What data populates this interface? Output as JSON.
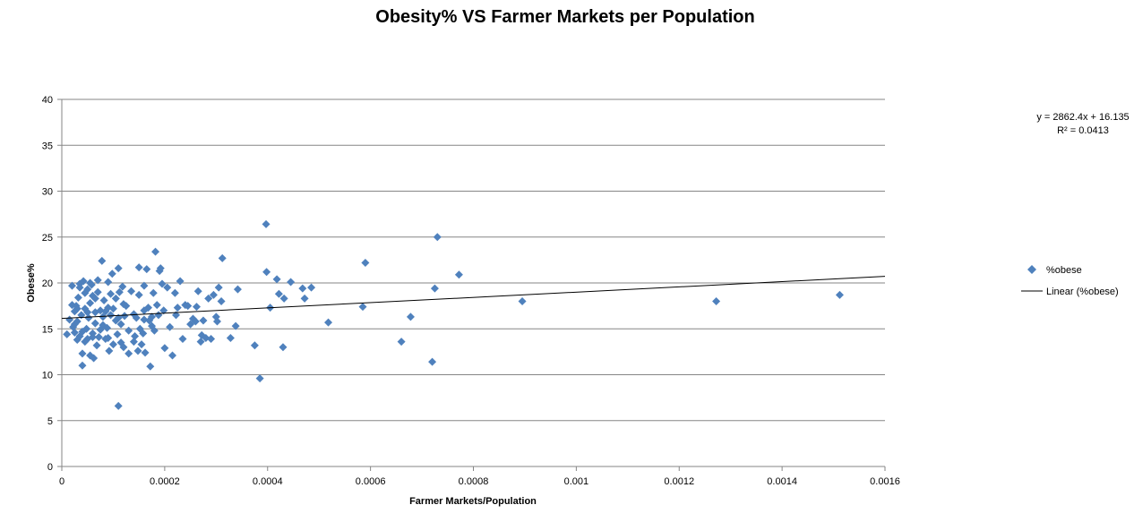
{
  "chart_data": {
    "type": "scatter",
    "title": "Obesity% VS Farmer Markets per Population",
    "xlabel": "Farmer Markets/Population",
    "ylabel": "Obese%",
    "xlim": [
      0,
      0.0016
    ],
    "ylim": [
      0,
      40
    ],
    "x_ticks": [
      "0",
      "0.0002",
      "0.0004",
      "0.0006",
      "0.0008",
      "0.001",
      "0.0012",
      "0.0014",
      "0.0016"
    ],
    "y_ticks": [
      "0",
      "5",
      "10",
      "15",
      "20",
      "25",
      "30",
      "35",
      "40"
    ],
    "grid": "horizontal",
    "legend_position": "right",
    "marker_color": "#4f81bd",
    "trendline_color": "#000000",
    "series": [
      {
        "name": "%obese",
        "points": [
          [
            1e-05,
            14.4
          ],
          [
            1.5e-05,
            16.0
          ],
          [
            2e-05,
            17.6
          ],
          [
            2e-05,
            19.7
          ],
          [
            2.2e-05,
            15.2
          ],
          [
            2.5e-05,
            14.6
          ],
          [
            2.5e-05,
            16.9
          ],
          [
            2.8e-05,
            17.5
          ],
          [
            3e-05,
            13.8
          ],
          [
            3e-05,
            15.8
          ],
          [
            3.2e-05,
            18.4
          ],
          [
            3.5e-05,
            19.9
          ],
          [
            3.5e-05,
            14.2
          ],
          [
            3.8e-05,
            16.5
          ],
          [
            4e-05,
            11.0
          ],
          [
            4e-05,
            12.3
          ],
          [
            4.2e-05,
            20.2
          ],
          [
            4.5e-05,
            17.2
          ],
          [
            4.5e-05,
            18.9
          ],
          [
            4.8e-05,
            15.0
          ],
          [
            5e-05,
            13.9
          ],
          [
            5e-05,
            19.3
          ],
          [
            5.2e-05,
            16.2
          ],
          [
            5.5e-05,
            12.1
          ],
          [
            5.5e-05,
            17.8
          ],
          [
            5.8e-05,
            19.8
          ],
          [
            6e-05,
            14.5
          ],
          [
            6e-05,
            18.6
          ],
          [
            6.2e-05,
            11.8
          ],
          [
            6.5e-05,
            15.6
          ],
          [
            6.5e-05,
            16.8
          ],
          [
            6.8e-05,
            13.2
          ],
          [
            7e-05,
            19.0
          ],
          [
            7e-05,
            20.3
          ],
          [
            7.2e-05,
            14.1
          ],
          [
            7.5e-05,
            17.0
          ],
          [
            7.8e-05,
            22.4
          ],
          [
            8e-05,
            15.4
          ],
          [
            8e-05,
            16.3
          ],
          [
            8.2e-05,
            18.1
          ],
          [
            8.5e-05,
            13.9
          ],
          [
            8.8e-05,
            15.1
          ],
          [
            9e-05,
            17.3
          ],
          [
            9e-05,
            20.1
          ],
          [
            9.2e-05,
            12.6
          ],
          [
            9.5e-05,
            16.5
          ],
          [
            9.8e-05,
            21.0
          ],
          [
            0.0001,
            17.2
          ],
          [
            0.0001,
            13.3
          ],
          [
            0.000105,
            18.3
          ],
          [
            0.000105,
            15.9
          ],
          [
            0.000108,
            14.4
          ],
          [
            0.00011,
            21.6
          ],
          [
            0.00011,
            6.6
          ],
          [
            0.000112,
            19.0
          ],
          [
            0.000115,
            13.5
          ],
          [
            0.000118,
            19.6
          ],
          [
            0.00012,
            13.0
          ],
          [
            0.000122,
            16.4
          ],
          [
            0.000125,
            17.5
          ],
          [
            0.00013,
            12.3
          ],
          [
            0.000135,
            19.1
          ],
          [
            0.00014,
            13.6
          ],
          [
            0.000142,
            14.2
          ],
          [
            0.000145,
            16.2
          ],
          [
            0.000148,
            12.6
          ],
          [
            0.00015,
            21.7
          ],
          [
            0.00015,
            18.7
          ],
          [
            0.000152,
            15.0
          ],
          [
            0.000155,
            13.3
          ],
          [
            0.000158,
            14.5
          ],
          [
            0.00016,
            16.0
          ],
          [
            0.00016,
            19.7
          ],
          [
            0.000162,
            12.4
          ],
          [
            0.000165,
            21.5
          ],
          [
            0.000168,
            17.3
          ],
          [
            0.00017,
            15.9
          ],
          [
            0.000172,
            10.9
          ],
          [
            0.000175,
            16.3
          ],
          [
            0.000178,
            18.9
          ],
          [
            0.00018,
            14.8
          ],
          [
            0.000182,
            23.4
          ],
          [
            0.000185,
            17.6
          ],
          [
            0.000188,
            16.5
          ],
          [
            0.00019,
            21.3
          ],
          [
            0.000192,
            21.6
          ],
          [
            0.000195,
            19.9
          ],
          [
            0.000198,
            17.0
          ],
          [
            0.0002,
            12.9
          ],
          [
            0.000205,
            19.5
          ],
          [
            0.00021,
            15.2
          ],
          [
            0.000215,
            12.1
          ],
          [
            0.00022,
            18.9
          ],
          [
            0.000222,
            16.5
          ],
          [
            0.000225,
            17.3
          ],
          [
            0.00023,
            20.2
          ],
          [
            0.000235,
            13.9
          ],
          [
            0.00024,
            17.6
          ],
          [
            0.000245,
            17.5
          ],
          [
            0.00025,
            15.5
          ],
          [
            0.000255,
            16.1
          ],
          [
            0.00026,
            15.8
          ],
          [
            0.000262,
            17.4
          ],
          [
            0.000265,
            19.1
          ],
          [
            0.00027,
            13.6
          ],
          [
            0.000272,
            14.3
          ],
          [
            0.000275,
            15.9
          ],
          [
            0.00028,
            14.0
          ],
          [
            0.000285,
            18.3
          ],
          [
            0.00029,
            13.9
          ],
          [
            0.000295,
            18.7
          ],
          [
            0.0003,
            16.3
          ],
          [
            0.000302,
            15.8
          ],
          [
            0.000305,
            19.5
          ],
          [
            0.00031,
            18.0
          ],
          [
            0.000312,
            22.7
          ],
          [
            0.000328,
            14.0
          ],
          [
            0.000338,
            15.3
          ],
          [
            0.000342,
            19.3
          ],
          [
            0.000375,
            13.2
          ],
          [
            0.000385,
            9.6
          ],
          [
            0.000397,
            26.4
          ],
          [
            0.000398,
            21.2
          ],
          [
            0.000405,
            17.3
          ],
          [
            0.000418,
            20.4
          ],
          [
            0.000422,
            18.8
          ],
          [
            0.00043,
            13.0
          ],
          [
            0.000432,
            18.3
          ],
          [
            0.000445,
            20.1
          ],
          [
            0.000468,
            19.4
          ],
          [
            0.000472,
            18.3
          ],
          [
            0.000485,
            19.5
          ],
          [
            0.000518,
            15.7
          ],
          [
            0.000585,
            17.4
          ],
          [
            0.00059,
            22.2
          ],
          [
            0.00066,
            13.6
          ],
          [
            0.000678,
            16.3
          ],
          [
            0.00072,
            11.4
          ],
          [
            0.000725,
            19.4
          ],
          [
            0.00073,
            25.0
          ],
          [
            0.000772,
            20.9
          ],
          [
            0.000895,
            18.0
          ],
          [
            0.001272,
            18.0
          ],
          [
            0.001512,
            18.7
          ],
          [
            5.5e-05,
            20.0
          ],
          [
            3.5e-05,
            19.5
          ],
          [
            0.00011,
            16.2
          ],
          [
            0.00013,
            14.8
          ],
          [
            0.00014,
            16.6
          ],
          [
            2.5e-05,
            15.5
          ],
          [
            5e-05,
            16.8
          ],
          [
            7.5e-05,
            14.9
          ],
          [
            9e-05,
            14.0
          ],
          [
            4.5e-05,
            13.6
          ],
          [
            0.00012,
            17.7
          ],
          [
            0.00016,
            17.0
          ],
          [
            8.5e-05,
            16.9
          ],
          [
            3e-05,
            17.2
          ],
          [
            6.5e-05,
            18.3
          ],
          [
            0.000115,
            15.5
          ],
          [
            0.000175,
            15.3
          ],
          [
            6e-05,
            14.1
          ],
          [
            9.5e-05,
            18.8
          ],
          [
            4e-05,
            14.7
          ]
        ]
      }
    ],
    "trendline": {
      "name": "Linear (%obese)",
      "slope": 2862.4,
      "intercept": 16.135,
      "equation": "y = 2862.4x + 16.135",
      "r2_label": "R² = 0.0413"
    }
  }
}
